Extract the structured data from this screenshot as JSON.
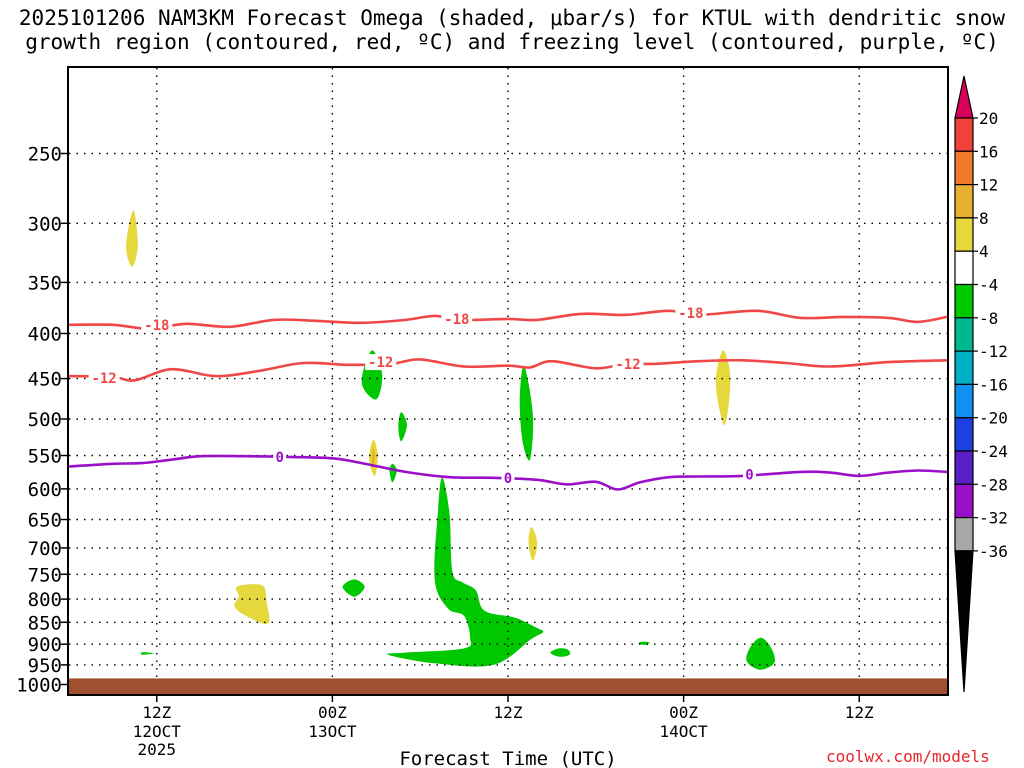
{
  "title_line1": "2025101206 NAM3KM Forecast Omega (shaded, μbar/s) for KTUL with dendritic snow",
  "title_line2": "growth region (contoured, red, ºC) and freezing level (contoured, purple, ºC)",
  "credit": "coolwx.com/models",
  "chart_data": {
    "type": "contour",
    "xlabel": "Forecast Time (UTC)",
    "x_ticks": [
      {
        "hour": 12,
        "label": "12Z",
        "sub1": "12OCT",
        "sub2": "2025"
      },
      {
        "hour": 24,
        "label": "00Z",
        "sub1": "13OCT",
        "sub2": ""
      },
      {
        "hour": 36,
        "label": "12Z",
        "sub1": "",
        "sub2": ""
      },
      {
        "hour": 48,
        "label": "00Z",
        "sub1": "14OCT",
        "sub2": ""
      },
      {
        "hour": 60,
        "label": "12Z",
        "sub1": "",
        "sub2": ""
      }
    ],
    "x_range_hours": [
      6,
      66
    ],
    "y_ticks_hpa": [
      250,
      300,
      350,
      400,
      450,
      500,
      550,
      600,
      650,
      700,
      750,
      800,
      850,
      900,
      950,
      1000
    ],
    "y_range_hpa": [
      200,
      1025
    ],
    "y_scale": "log-pressure",
    "grid": true,
    "colorbar": {
      "labels": [
        "20",
        "16",
        "12",
        "8",
        "4",
        "-4",
        "-8",
        "-12",
        "-16",
        "-20",
        "-24",
        "-28",
        "-32",
        "-36"
      ],
      "colors": [
        "#d8005a",
        "#f0423a",
        "#f07a2a",
        "#e8b030",
        "#e4d83c",
        "#ffffff",
        "#00c800",
        "#00b890",
        "#00b0c8",
        "#1090f0",
        "#1f40e0",
        "#5a20c8",
        "#9a10c8",
        "#a8a8a8",
        "#000000"
      ]
    },
    "contours": [
      {
        "name": "-18",
        "color": "#f04848",
        "points": [
          [
            6,
            391
          ],
          [
            9,
            391
          ],
          [
            11.5,
            395
          ],
          [
            14,
            390
          ],
          [
            17,
            393
          ],
          [
            20,
            386
          ],
          [
            23,
            387
          ],
          [
            26,
            389
          ],
          [
            29,
            386
          ],
          [
            31,
            382
          ],
          [
            33,
            386
          ],
          [
            36,
            385
          ],
          [
            38,
            386
          ],
          [
            41,
            380
          ],
          [
            44,
            381
          ],
          [
            47,
            377
          ],
          [
            49,
            381
          ],
          [
            53,
            377
          ],
          [
            56,
            384
          ],
          [
            59,
            383
          ],
          [
            62,
            384
          ],
          [
            64,
            388
          ],
          [
            66,
            383
          ]
        ],
        "labels": [
          {
            "x": 12,
            "y": 391
          },
          {
            "x": 32.5,
            "y": 385
          },
          {
            "x": 48.5,
            "y": 379
          }
        ]
      },
      {
        "name": "-12",
        "color": "#f04848",
        "points": [
          [
            6,
            447
          ],
          [
            9,
            448
          ],
          [
            10.5,
            452
          ],
          [
            13,
            439
          ],
          [
            16,
            447
          ],
          [
            19,
            441
          ],
          [
            22,
            432
          ],
          [
            25,
            434
          ],
          [
            28,
            433
          ],
          [
            30,
            428
          ],
          [
            33,
            436
          ],
          [
            36,
            435
          ],
          [
            37.5,
            437
          ],
          [
            39,
            430
          ],
          [
            42,
            438
          ],
          [
            44,
            433
          ],
          [
            46,
            433
          ],
          [
            49,
            430
          ],
          [
            52,
            429
          ],
          [
            55,
            432
          ],
          [
            58,
            436
          ],
          [
            62,
            431
          ],
          [
            66,
            429
          ]
        ],
        "labels": [
          {
            "x": 8.4,
            "y": 449
          },
          {
            "x": 27.3,
            "y": 431
          },
          {
            "x": 44.2,
            "y": 433
          }
        ]
      },
      {
        "name": "0",
        "color": "#9a10c8",
        "points": [
          [
            6,
            566
          ],
          [
            9,
            562
          ],
          [
            11,
            561
          ],
          [
            13,
            556
          ],
          [
            15,
            551
          ],
          [
            18,
            551
          ],
          [
            21,
            552
          ],
          [
            24,
            554
          ],
          [
            26,
            561
          ],
          [
            29,
            574
          ],
          [
            32,
            582
          ],
          [
            35,
            583
          ],
          [
            38,
            586
          ],
          [
            40,
            593
          ],
          [
            42,
            589
          ],
          [
            43.5,
            601
          ],
          [
            45,
            590
          ],
          [
            47,
            582
          ],
          [
            49,
            581
          ],
          [
            52,
            580
          ],
          [
            56,
            574
          ],
          [
            58,
            575
          ],
          [
            60,
            580
          ],
          [
            62,
            575
          ],
          [
            64,
            572
          ],
          [
            66,
            574
          ]
        ],
        "labels": [
          {
            "x": 20.4,
            "y": 552
          },
          {
            "x": 36,
            "y": 583
          },
          {
            "x": 52.5,
            "y": 578
          }
        ]
      }
    ],
    "shaded_regions": [
      {
        "value": 4,
        "color": "#e4d83c",
        "points": [
          [
            10.4,
            290
          ],
          [
            10.7,
            318
          ],
          [
            10.3,
            336
          ],
          [
            9.9,
            318
          ]
        ]
      },
      {
        "value": 4,
        "color": "#e4d83c",
        "points": [
          [
            26.8,
            528
          ],
          [
            27.1,
            550
          ],
          [
            26.9,
            580
          ],
          [
            26.5,
            555
          ]
        ]
      },
      {
        "value": 8,
        "color": "#e8b030",
        "points": [
          [
            26.8,
            538
          ],
          [
            26.9,
            555
          ],
          [
            26.75,
            568
          ],
          [
            26.7,
            552
          ]
        ]
      },
      {
        "value": 4,
        "color": "#e4d83c",
        "points": [
          [
            50.7,
            418
          ],
          [
            51.2,
            450
          ],
          [
            50.8,
            508
          ],
          [
            50.2,
            455
          ]
        ]
      },
      {
        "value": 4,
        "color": "#e4d83c",
        "points": [
          [
            37.6,
            663
          ],
          [
            38.0,
            690
          ],
          [
            37.7,
            724
          ],
          [
            37.4,
            690
          ]
        ]
      },
      {
        "value": 4,
        "color": "#e4d83c",
        "points": [
          [
            17.5,
            774
          ],
          [
            19.2,
            772
          ],
          [
            19.5,
            806
          ],
          [
            19.6,
            853
          ],
          [
            18.1,
            836
          ],
          [
            17.3,
            815
          ],
          [
            17.6,
            795
          ]
        ]
      },
      {
        "value": -4,
        "color": "#00c800",
        "points": [
          [
            26.7,
            418
          ],
          [
            27.4,
            445
          ],
          [
            27.0,
            475
          ],
          [
            26.0,
            455
          ]
        ]
      },
      {
        "value": -4,
        "color": "#00c800",
        "points": [
          [
            28.7,
            491
          ],
          [
            29.1,
            508
          ],
          [
            28.7,
            530
          ],
          [
            28.5,
            510
          ]
        ]
      },
      {
        "value": -4,
        "color": "#00c800",
        "points": [
          [
            37.1,
            435
          ],
          [
            37.7,
            495
          ],
          [
            37.5,
            556
          ],
          [
            37.0,
            530
          ],
          [
            36.8,
            475
          ]
        ]
      },
      {
        "value": -4,
        "color": "#00c800",
        "points": [
          [
            28.1,
            562
          ],
          [
            28.4,
            572
          ],
          [
            28.1,
            590
          ],
          [
            27.9,
            572
          ]
        ]
      },
      {
        "value": -4,
        "color": "#00c800",
        "points": [
          [
            31.5,
            582
          ],
          [
            32.0,
            640
          ],
          [
            32.2,
            745
          ],
          [
            32.9,
            766
          ],
          [
            33.8,
            782
          ],
          [
            34.4,
            825
          ],
          [
            36.5,
            840
          ],
          [
            38.0,
            863
          ],
          [
            38.4,
            872
          ],
          [
            37.6,
            888
          ],
          [
            35.0,
            950
          ],
          [
            31.0,
            946
          ],
          [
            27.8,
            925
          ],
          [
            29.0,
            920
          ],
          [
            33.0,
            910
          ],
          [
            33.4,
            884
          ],
          [
            33.0,
            836
          ],
          [
            31.9,
            820
          ],
          [
            31.0,
            762
          ],
          [
            31.2,
            640
          ]
        ]
      },
      {
        "value": -4,
        "color": "#00c800",
        "points": [
          [
            25.5,
            760
          ],
          [
            26.2,
            775
          ],
          [
            25.5,
            795
          ],
          [
            24.7,
            775
          ]
        ]
      },
      {
        "value": -4,
        "color": "#00c800",
        "points": [
          [
            11.0,
            919
          ],
          [
            11.8,
            922
          ],
          [
            11.0,
            925
          ]
        ]
      },
      {
        "value": -4,
        "color": "#00c800",
        "points": [
          [
            39.5,
            910
          ],
          [
            40.1,
            913
          ],
          [
            40.2,
            925
          ],
          [
            39.5,
            930
          ],
          [
            38.9,
            920
          ]
        ]
      },
      {
        "value": -4,
        "color": "#00c800",
        "points": [
          [
            45.3,
            894
          ],
          [
            45.7,
            897
          ],
          [
            45.3,
            902
          ],
          [
            44.9,
            897
          ]
        ]
      },
      {
        "value": -4,
        "color": "#00c800",
        "points": [
          [
            53.3,
            885
          ],
          [
            54.0,
            910
          ],
          [
            54.2,
            945
          ],
          [
            53.2,
            962
          ],
          [
            52.3,
            940
          ],
          [
            52.6,
            905
          ]
        ]
      }
    ],
    "terrain": {
      "color": "#a05030",
      "top_hpa": 984
    }
  }
}
